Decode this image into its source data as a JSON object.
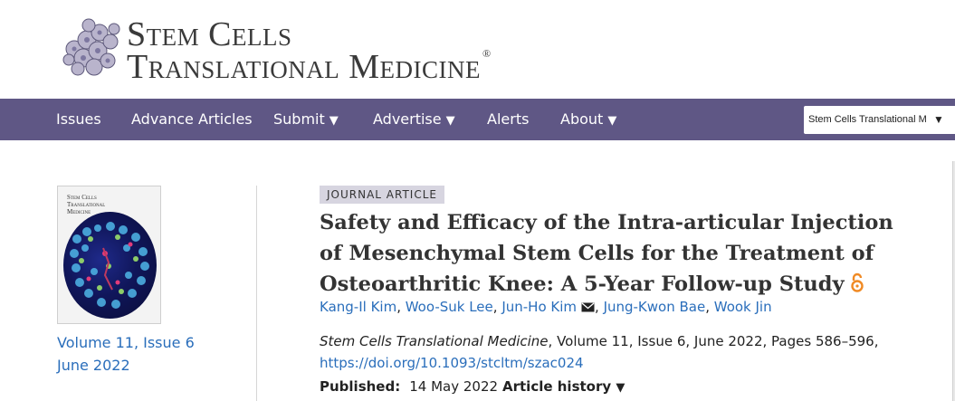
{
  "header": {
    "logo_line1": "Stem Cells",
    "logo_line2": "Translational Medicine",
    "logo_reg": "®"
  },
  "nav": {
    "items": [
      {
        "label": "Issues",
        "dropdown": false
      },
      {
        "label": "Advance Articles",
        "dropdown": false
      },
      {
        "label": "Submit",
        "dropdown": true
      },
      {
        "label": "Advertise",
        "dropdown": true
      },
      {
        "label": "Alerts",
        "dropdown": false
      },
      {
        "label": "About",
        "dropdown": true
      }
    ],
    "arrow": "▼",
    "journal_select_value": "Stem Cells Translational M"
  },
  "issue": {
    "cover_title": "Stem Cells Translational Medicine",
    "volume_issue": "Volume 11, Issue 6",
    "date": "June 2022"
  },
  "article": {
    "type_badge": "JOURNAL ARTICLE",
    "title": "Safety and Efficacy of the Intra-articular Injection of Mesenchymal Stem Cells for the Treatment of Osteoarthritic Knee: A 5-Year Follow-up Study",
    "authors": [
      "Kang-Il Kim",
      "Woo-Suk Lee",
      "Jun-Ho Kim",
      "Jung-Kwon Bae",
      "Wook Jin"
    ],
    "corresponding_author_index": 2,
    "separator": ", ",
    "journal": "Stem Cells Translational Medicine",
    "citation_rest": ", Volume 11, Issue 6, June 2022, Pages 586–596,",
    "doi": "https://doi.org/10.1093/stcltm/szac024",
    "published_label": "Published:",
    "published_date": "14 May 2022",
    "history_label": "Article history",
    "history_arrow": "▼"
  },
  "colors": {
    "nav_bg": "#5f5785",
    "link": "#2a6ebb",
    "badge_bg": "#d7d5e0",
    "open_access": "#f08a24"
  },
  "icons": {
    "logo": "cell-cluster-logo-icon",
    "open_access": "open-access-lock-icon",
    "email": "envelope-icon"
  }
}
